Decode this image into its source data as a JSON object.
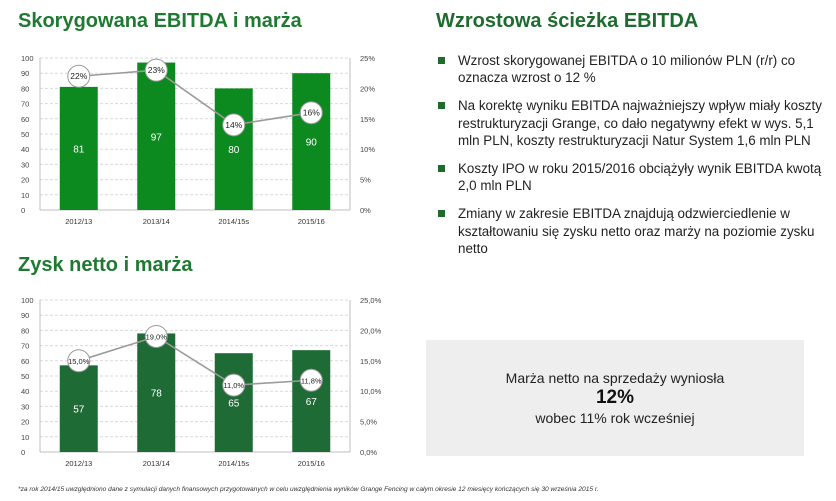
{
  "left": {
    "ebitda_title": "Skorygowana EBITDA i marża",
    "netto_title": "Zysk netto i marża"
  },
  "right": {
    "title": "Wzrostowa ścieżka EBITDA",
    "bullets": [
      "Wzrost skorygowanej EBITDA o 10 milionów PLN (r/r) co oznacza wzrost o 12 %",
      "Na korektę wyniku EBITDA najważniejszy wpływ miały koszty restrukturyzacji Grange, co dało negatywny efekt w wys. 5,1 mln PLN, koszty restrukturyzacji Natur System 1,6 mln PLN",
      "Koszty IPO w roku 2015/2016 obciążyły wynik EBITDA kwotą 2,0 mln PLN",
      "Zmiany w zakresie EBITDA znajdują odzwierciedlenie w kształtowaniu się zysku netto oraz marży na poziomie zysku netto"
    ],
    "note": {
      "line1": "Marża netto na sprzedaży wyniosła",
      "line2": "12%",
      "line3": "wobec 11% rok wcześniej"
    }
  },
  "footnote": "*za rok 2014/15 uwzględniono dane z symulacji danych finansowych przygotowanych w celu uwzględnienia wyników Grange Fencing w całym okresie 12 miesięcy kończących się 30 września 2015 r.",
  "colors": {
    "ebitda_bar": "#0d8a1f",
    "netto_bar": "#1f6b35",
    "line": "#9a9a9a",
    "title": "#1f7a31"
  },
  "chart_data": [
    {
      "type": "bar",
      "categories": [
        "2012/13",
        "2013/14",
        "2014/15s",
        "2015/16"
      ],
      "series": [
        {
          "values": [
            81,
            97,
            80,
            90
          ],
          "axis": "left",
          "labels": [
            "81",
            "97",
            "80",
            "90"
          ]
        },
        {
          "type": "line",
          "values": [
            22,
            23,
            14,
            16
          ],
          "axis": "right",
          "labels": [
            "22%",
            "23%",
            "14%",
            "16%"
          ]
        }
      ],
      "y_left": {
        "min": 0,
        "max": 100,
        "ticks": [
          "0",
          "10",
          "20",
          "30",
          "40",
          "50",
          "60",
          "70",
          "80",
          "90",
          "100"
        ]
      },
      "y_right": {
        "min": 0,
        "max": 25,
        "ticks": [
          "0%",
          "5%",
          "10%",
          "15%",
          "20%",
          "25%"
        ]
      },
      "grid": true
    },
    {
      "type": "bar",
      "categories": [
        "2012/13",
        "2013/14",
        "2014/15s",
        "2015/16"
      ],
      "series": [
        {
          "values": [
            57,
            78,
            65,
            67
          ],
          "axis": "left",
          "labels": [
            "57",
            "78",
            "65",
            "67"
          ]
        },
        {
          "type": "line",
          "values": [
            15.0,
            19.0,
            11.0,
            11.8
          ],
          "axis": "right",
          "labels": [
            "15,0%",
            "19,0%",
            "11,0%",
            "11,8%"
          ]
        }
      ],
      "y_left": {
        "min": 0,
        "max": 100,
        "ticks": [
          "0",
          "10",
          "20",
          "30",
          "40",
          "50",
          "60",
          "70",
          "80",
          "90",
          "100"
        ]
      },
      "y_right": {
        "min": 0,
        "max": 25,
        "ticks": [
          "0,0%",
          "5,0%",
          "10,0%",
          "15,0%",
          "20,0%",
          "25,0%"
        ]
      },
      "grid": true
    }
  ]
}
